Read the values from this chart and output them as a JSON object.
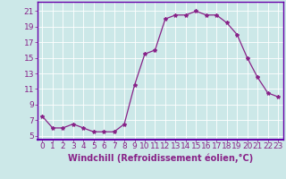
{
  "x": [
    0,
    1,
    2,
    3,
    4,
    5,
    6,
    7,
    8,
    9,
    10,
    11,
    12,
    13,
    14,
    15,
    16,
    17,
    18,
    19,
    20,
    21,
    22,
    23
  ],
  "y": [
    7.5,
    6.0,
    6.0,
    6.5,
    6.0,
    5.5,
    5.5,
    5.5,
    6.5,
    11.5,
    15.5,
    16.0,
    20.0,
    20.5,
    20.5,
    21.0,
    20.5,
    20.5,
    19.5,
    18.0,
    15.0,
    12.5,
    10.5,
    10.0
  ],
  "line_color": "#882288",
  "marker": "*",
  "marker_size": 3,
  "xlabel": "Windchill (Refroidissement éolien,°C)",
  "xlabel_fontsize": 7,
  "bg_color": "#cce8e8",
  "grid_color": "#ffffff",
  "yticks": [
    5,
    7,
    9,
    11,
    13,
    15,
    17,
    19,
    21
  ],
  "ylim": [
    4.5,
    22.2
  ],
  "xlim": [
    -0.5,
    23.5
  ],
  "tick_fontsize": 6.5,
  "border_color": "#6600aa"
}
